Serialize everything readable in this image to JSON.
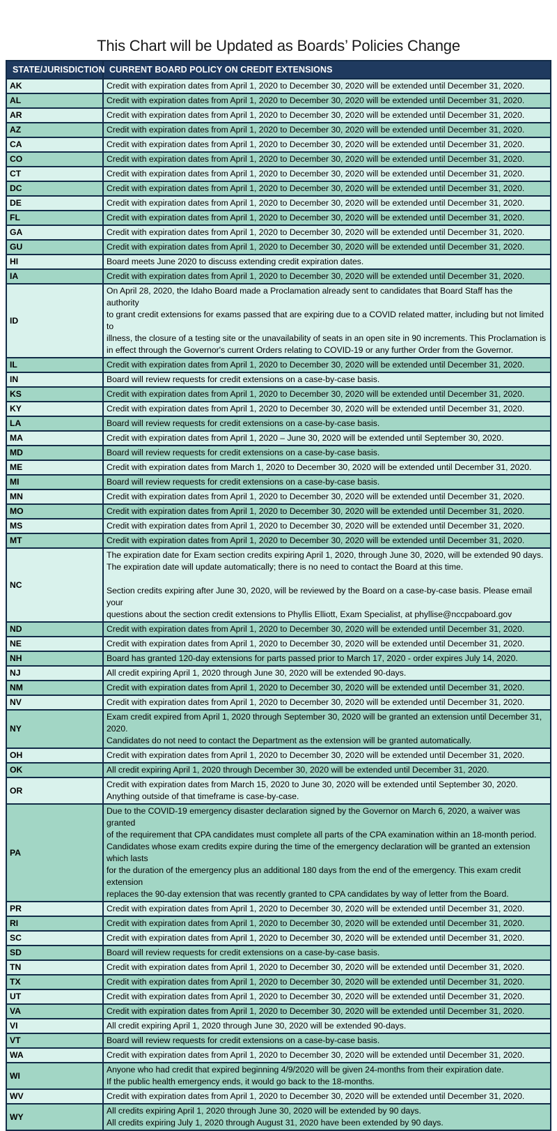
{
  "title": "This Chart will be Updated as Boards’ Policies Change",
  "colors": {
    "header_bg": "#1f3a5f",
    "header_text": "#ffffff",
    "row_light": "#d9f2ec",
    "row_dark": "#a2d6c5",
    "border": "#122b47",
    "title_text": "#1a1a1a"
  },
  "table": {
    "columns": [
      "STATE/JURISDICTION",
      "CURRENT BOARD POLICY ON CREDIT EXTENSIONS"
    ],
    "rows": [
      {
        "state": "AK",
        "policy": [
          "Credit with expiration dates from April 1, 2020 to December 30, 2020 will be extended until December 31, 2020."
        ]
      },
      {
        "state": "AL",
        "policy": [
          "Credit with expiration dates from April 1, 2020 to December 30, 2020 will be extended until December 31, 2020."
        ]
      },
      {
        "state": "AR",
        "policy": [
          "Credit with expiration dates from April 1, 2020 to December 30, 2020 will be extended until December 31, 2020."
        ]
      },
      {
        "state": "AZ",
        "policy": [
          "Credit with expiration dates from April 1, 2020 to December 30, 2020 will be extended until December 31, 2020."
        ]
      },
      {
        "state": "CA",
        "policy": [
          "Credit with expiration dates from April 1, 2020 to December 30, 2020 will be extended until December 31, 2020."
        ]
      },
      {
        "state": "CO",
        "policy": [
          "Credit with expiration dates from April 1, 2020 to December 30, 2020 will be extended until December 31, 2020."
        ]
      },
      {
        "state": "CT",
        "policy": [
          "Credit with expiration dates from April 1, 2020 to December 30, 2020 will be extended until December 31, 2020."
        ]
      },
      {
        "state": "DC",
        "policy": [
          "Credit with expiration dates from April 1, 2020 to December 30, 2020 will be extended until December 31, 2020."
        ]
      },
      {
        "state": "DE",
        "policy": [
          "Credit with expiration dates from April 1, 2020 to December 30, 2020 will be extended until December 31, 2020."
        ]
      },
      {
        "state": "FL",
        "policy": [
          "Credit with expiration dates from April 1, 2020 to December 30, 2020 will be extended until December 31, 2020."
        ]
      },
      {
        "state": "GA",
        "policy": [
          "Credit with expiration dates from April 1, 2020 to December 30, 2020 will be extended until December 31, 2020."
        ]
      },
      {
        "state": "GU",
        "policy": [
          "Credit with expiration dates from April 1, 2020 to December 30, 2020 will be extended until December 31, 2020."
        ]
      },
      {
        "state": "HI",
        "policy": [
          "Board meets June 2020 to discuss extending credit expiration dates."
        ]
      },
      {
        "state": "IA",
        "policy": [
          "Credit with expiration dates from April 1, 2020 to December 30, 2020 will be extended until December 31, 2020."
        ]
      },
      {
        "state": "ID",
        "policy": [
          "On April 28, 2020, the Idaho Board made a Proclamation already sent to candidates that Board Staff has the authority",
          "to grant credit extensions for exams passed that are expiring due to a COVID related matter, including but not limited to",
          "illness, the closure of a testing site or the unavailability of seats in an open site in 90 increments. This Proclamation is",
          "in effect through the Governor's current Orders relating to COVID-19 or any further Order from the Governor."
        ]
      },
      {
        "state": "IL",
        "policy": [
          "Credit with expiration dates from April 1, 2020 to December 30, 2020 will be extended until December 31, 2020."
        ]
      },
      {
        "state": "IN",
        "policy": [
          "Board will review requests for credit extensions on a case-by-case basis."
        ]
      },
      {
        "state": "KS",
        "policy": [
          "Credit with expiration dates from April 1, 2020 to December 30, 2020 will be extended until December 31, 2020."
        ]
      },
      {
        "state": "KY",
        "policy": [
          "Credit with expiration dates from April 1, 2020 to December 30, 2020 will be extended until December 31, 2020."
        ]
      },
      {
        "state": "LA",
        "policy": [
          "Board will review requests for credit extensions on a case-by-case basis."
        ]
      },
      {
        "state": "MA",
        "policy": [
          "Credit with expiration dates from April 1, 2020 – June 30, 2020 will be extended until September 30, 2020."
        ]
      },
      {
        "state": "MD",
        "policy": [
          "Board will review requests for credit extensions on a case-by-case basis."
        ]
      },
      {
        "state": "ME",
        "policy": [
          "Credit with expiration dates from March 1, 2020 to December 30, 2020 will be extended until December 31, 2020."
        ]
      },
      {
        "state": "MI",
        "policy": [
          "Board will review requests for credit extensions on a case-by-case basis."
        ]
      },
      {
        "state": "MN",
        "policy": [
          "Credit with expiration dates from April 1, 2020 to December 30, 2020 will be extended until December 31, 2020."
        ]
      },
      {
        "state": "MO",
        "policy": [
          "Credit with expiration dates from April 1, 2020 to December 30, 2020 will be extended until December 31, 2020."
        ]
      },
      {
        "state": "MS",
        "policy": [
          "Credit with expiration dates from April 1, 2020 to December 30, 2020 will be extended until December 31, 2020."
        ]
      },
      {
        "state": "MT",
        "policy": [
          "Credit with expiration dates from April 1, 2020 to December 30, 2020 will be extended until December 31, 2020."
        ]
      },
      {
        "state": "NC",
        "policy": [
          "The expiration date for Exam section credits expiring April 1, 2020, through June 30, 2020, will be extended 90 days.",
          "The expiration date will update automatically; there is no need to contact the Board at this time.",
          "",
          "Section credits expiring after June 30, 2020, will be reviewed by the Board on a case-by-case basis. Please email your",
          "questions about the section credit extensions to Phyllis Elliott, Exam Specialist, at phyllise@nccpaboard.gov"
        ]
      },
      {
        "state": "ND",
        "policy": [
          "Credit with expiration dates from April 1, 2020 to December 30, 2020 will be extended until December 31, 2020."
        ]
      },
      {
        "state": "NE",
        "policy": [
          "Credit with expiration dates from April 1, 2020 to December 30, 2020 will be extended until December 31, 2020."
        ]
      },
      {
        "state": "NH",
        "policy": [
          "Board has granted 120-day extensions for parts passed prior to March 17, 2020 - order expires July 14, 2020."
        ]
      },
      {
        "state": "NJ",
        "policy": [
          "All credit expiring April 1, 2020 through June 30, 2020 will be extended 90-days."
        ]
      },
      {
        "state": "NM",
        "policy": [
          "Credit with expiration dates from April 1, 2020 to December 30, 2020 will be extended until December 31, 2020."
        ]
      },
      {
        "state": "NV",
        "policy": [
          "Credit with expiration dates from April 1, 2020 to December 30, 2020 will be extended until December 31, 2020."
        ]
      },
      {
        "state": "NY",
        "policy": [
          "Exam credit expired from April 1, 2020 through September 30, 2020 will be granted an extension until December 31, 2020.",
          "Candidates do not need to contact the Department as the extension will be granted automatically."
        ]
      },
      {
        "state": "OH",
        "policy": [
          "Credit with expiration dates from April 1, 2020 to December 30, 2020 will be extended until December 31, 2020."
        ]
      },
      {
        "state": "OK",
        "policy": [
          "All credit expiring April 1, 2020 through December 30, 2020 will be extended until December 31, 2020."
        ]
      },
      {
        "state": "OR",
        "policy": [
          "Credit with expiration dates from March 15, 2020 to June 30, 2020 will be extended until September 30, 2020.",
          "Anything outside of that timeframe is case-by-case."
        ]
      },
      {
        "state": "PA",
        "policy": [
          "Due to the COVID-19 emergency disaster declaration signed by the Governor on March 6, 2020, a waiver was granted",
          "of the requirement that CPA candidates must complete all parts of the CPA examination within an 18-month period.",
          "Candidates whose exam credits expire during the time of the emergency declaration will be granted an extension which lasts",
          "for the duration of the emergency plus an additional 180 days from the end of the emergency. This exam credit extension",
          "replaces the 90-day extension that was recently granted to CPA candidates by way of letter from the Board."
        ]
      },
      {
        "state": "PR",
        "policy": [
          "Credit with expiration dates from April 1, 2020 to December 30, 2020 will be extended until December 31, 2020."
        ]
      },
      {
        "state": "RI",
        "policy": [
          "Credit with expiration dates from April 1, 2020 to December 30, 2020 will be extended until December 31, 2020."
        ]
      },
      {
        "state": "SC",
        "policy": [
          "Credit with expiration dates from April 1, 2020 to December 30, 2020 will be extended until December 31, 2020."
        ]
      },
      {
        "state": "SD",
        "policy": [
          "Board will review requests for credit extensions on a case-by-case basis."
        ]
      },
      {
        "state": "TN",
        "policy": [
          "Credit with expiration dates from April 1, 2020 to December 30, 2020 will be extended until December 31, 2020."
        ]
      },
      {
        "state": "TX",
        "policy": [
          "Credit with expiration dates from April 1, 2020 to December 30, 2020 will be extended until December 31, 2020."
        ]
      },
      {
        "state": "UT",
        "policy": [
          "Credit with expiration dates from April 1, 2020 to December 30, 2020 will be extended until December 31, 2020."
        ]
      },
      {
        "state": "VA",
        "policy": [
          "Credit with expiration dates from April 1, 2020 to December 30, 2020 will be extended until December 31, 2020."
        ]
      },
      {
        "state": "VI",
        "policy": [
          "All credit expiring April 1, 2020 through June 30, 2020 will be extended 90-days."
        ]
      },
      {
        "state": "VT",
        "policy": [
          "Board will review requests for credit extensions on a case-by-case basis."
        ]
      },
      {
        "state": "WA",
        "policy": [
          "Credit with expiration dates from April 1, 2020 to December 30, 2020 will be extended until December 31, 2020."
        ]
      },
      {
        "state": "WI",
        "policy": [
          "Anyone who had credit that expired beginning 4/9/2020 will be given 24-months from their expiration date.",
          "If the public health emergency ends, it would go back to the 18-months."
        ]
      },
      {
        "state": "WV",
        "policy": [
          "Credit with expiration dates from April 1, 2020 to December 30, 2020 will be extended until December 31, 2020."
        ]
      },
      {
        "state": "WY",
        "policy": [
          "All credits expiring April 1, 2020 through June 30, 2020 will be extended by 90 days.",
          "All credits expiring July 1, 2020 through August 31, 2020 have been extended by 90 days."
        ]
      }
    ]
  }
}
